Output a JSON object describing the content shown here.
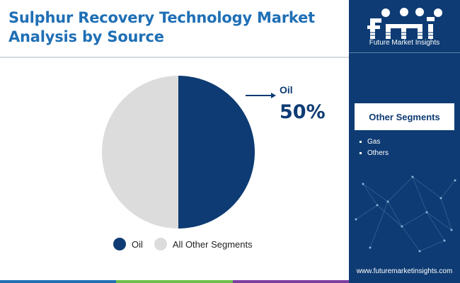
{
  "header": {
    "title": "Sulphur Recovery Technology Market Analysis by Source"
  },
  "chart_data": {
    "type": "pie",
    "slices": [
      {
        "label": "Oil",
        "value": 50,
        "color": "#0e3b73"
      },
      {
        "label": "All Other Segments",
        "value": 50,
        "color": "#dcdcdc"
      }
    ],
    "callout": {
      "label": "Oil",
      "value": "50%"
    },
    "legend": {
      "placement": "bottom",
      "items": [
        "Oil",
        "All Other Segments"
      ]
    }
  },
  "sidebar": {
    "logo_text": "Future Market Insights",
    "segments_title": "Other Segments",
    "segments": [
      "Gas",
      "Others"
    ],
    "website": "www.futuremarketinsights.com"
  },
  "colors": {
    "brand_dark": "#0e3b73",
    "title_blue": "#1f6fb5",
    "other_gray": "#dcdcdc",
    "bottom_bar": [
      "#1f6fb5",
      "#6cc04a",
      "#7b3fa0"
    ]
  }
}
